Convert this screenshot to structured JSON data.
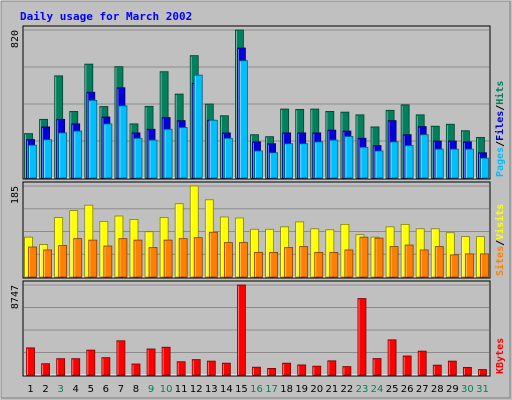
{
  "chart_data": {
    "type": "bar",
    "title": "Daily usage for March 2002",
    "categories": [
      "1",
      "2",
      "3",
      "4",
      "5",
      "6",
      "7",
      "8",
      "9",
      "10",
      "11",
      "12",
      "13",
      "14",
      "15",
      "16",
      "17",
      "18",
      "19",
      "20",
      "21",
      "22",
      "23",
      "24",
      "25",
      "26",
      "27",
      "28",
      "29",
      "30",
      "31"
    ],
    "weekend_days": [
      "3",
      "9",
      "10",
      "16",
      "17",
      "23",
      "24",
      "30",
      "31"
    ],
    "panels": [
      {
        "name": "hits_files_pages",
        "axis_max_label": "820",
        "ylim": [
          0,
          820
        ],
        "side_labels": [
          "Pages",
          "/",
          "Files",
          "/",
          "Hits"
        ],
        "series": [
          {
            "name": "Hits",
            "color": "#00805c",
            "values": [
              246,
              325,
              566,
              369,
              631,
              396,
              617,
              300,
              397,
              589,
              465,
              678,
              410,
              345,
              820,
              240,
              229,
              382,
              380,
              382,
              369,
              365,
              350,
              283,
              375,
              405,
              350,
              287,
              298,
              262,
              225
            ]
          },
          {
            "name": "Files",
            "color": "#0000d8",
            "values": [
              213,
              283,
              325,
              300,
              475,
              338,
              500,
              250,
              270,
              335,
              318,
              525,
              320,
              250,
              720,
              200,
              190,
              250,
              250,
              250,
              265,
              260,
              220,
              180,
              318,
              240,
              285,
              205,
              205,
              200,
              140
            ]
          },
          {
            "name": "Pages",
            "color": "#00bfff",
            "values": [
              182,
              212,
              250,
              260,
              430,
              300,
              400,
              220,
              210,
              270,
              280,
              570,
              320,
              220,
              650,
              150,
              140,
              190,
              190,
              200,
              210,
              230,
              170,
              150,
              200,
              180,
              240,
              160,
              160,
              160,
              110
            ]
          }
        ]
      },
      {
        "name": "visits_sites",
        "axis_max_label": "185",
        "ylim": [
          0,
          185
        ],
        "side_labels": [
          "Sites",
          "/",
          "Visits"
        ],
        "series": [
          {
            "name": "Visits",
            "color": "#ffff00",
            "values": [
              81,
              66,
              121,
              135,
              146,
              113,
              124,
              117,
              92,
              121,
              149,
              185,
              157,
              122,
              120,
              97,
              97,
              102,
              112,
              98,
              96,
              107,
              86,
              81,
              102,
              107,
              98,
              98,
              90,
              82,
              82
            ]
          },
          {
            "name": "Sites",
            "color": "#ff8000",
            "values": [
              61,
              55,
              64,
              78,
              75,
              63,
              78,
              75,
              60,
              75,
              78,
              80,
              91,
              70,
              70,
              50,
              50,
              60,
              62,
              50,
              50,
              55,
              81,
              79,
              62,
              65,
              55,
              62,
              45,
              47,
              47
            ]
          }
        ]
      },
      {
        "name": "kbytes",
        "axis_max_label": "8747",
        "ylim": [
          0,
          8747
        ],
        "side_labels": [
          "KBytes"
        ],
        "series": [
          {
            "name": "KBytes",
            "color": "#ff0000",
            "values": [
              2640,
              1100,
              1590,
              1590,
              2420,
              1690,
              3330,
              1070,
              2530,
              2700,
              1290,
              1500,
              1350,
              1150,
              8747,
              760,
              640,
              1150,
              980,
              860,
              1380,
              820,
              7430,
              1600,
              3420,
              1850,
              2320,
              960,
              1350,
              740,
              530
            ]
          }
        ]
      }
    ]
  }
}
